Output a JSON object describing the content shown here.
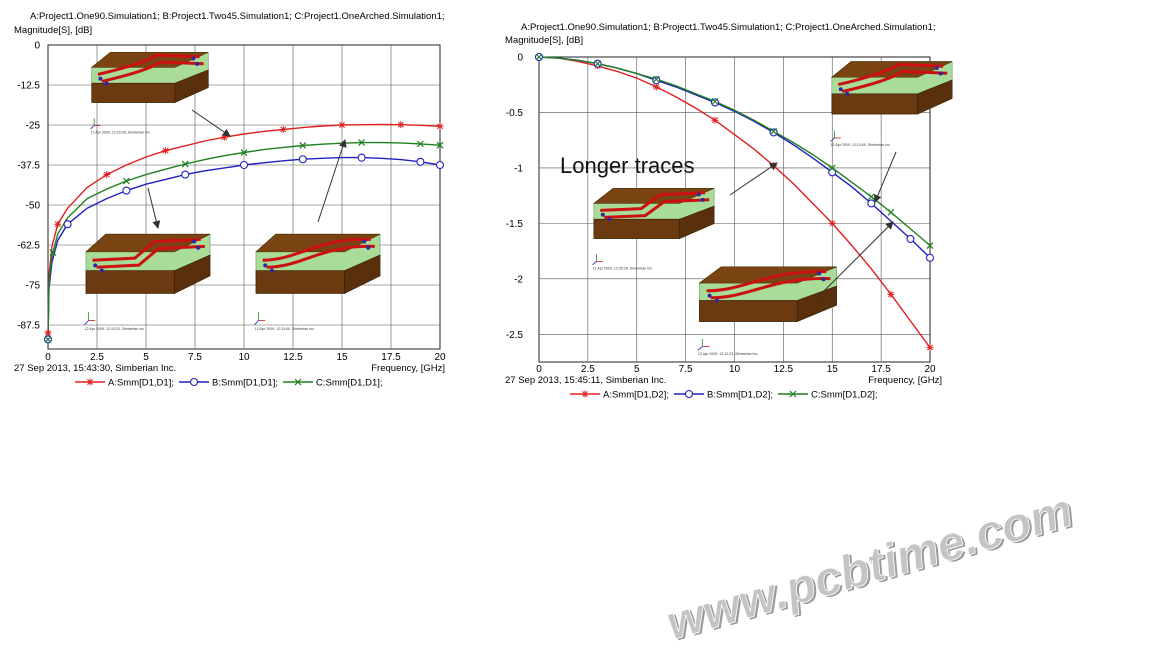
{
  "chart_data": [
    {
      "type": "line",
      "header_line1": "A:Project1.One90.Simulation1; B:Project1.Two45.Simulation1; C:Project1.OneArched.Simulation1;",
      "ylabel": "Magnitude[S], [dB]",
      "xlabel": "Frequency, [GHz]",
      "footer": "27 Sep 2013, 15:43:30, Simberian Inc.",
      "xlim": [
        0,
        20
      ],
      "ylim": [
        -95,
        0
      ],
      "xticks": [
        0,
        2.5,
        5,
        7.5,
        10,
        12.5,
        15,
        17.5,
        20
      ],
      "xtick_labels": [
        "0",
        "2.5",
        "5",
        "7.5",
        "10",
        "12.5",
        "15",
        "17.5",
        "20"
      ],
      "yticks": [
        0,
        -12.5,
        -25,
        -37.5,
        -50,
        -62.5,
        -75,
        -87.5
      ],
      "ytick_labels": [
        "0",
        "-12.5",
        "-25",
        "-37.5",
        "-50",
        "-62.5",
        "-75",
        "-87.5"
      ],
      "grid": true,
      "legend_position": "bottom",
      "series": [
        {
          "name": "A:Smm[D1,D1];",
          "color": "#e02020",
          "marker": "star",
          "x": [
            0,
            0.05,
            0.2,
            0.5,
            1,
            2,
            3,
            4,
            5,
            6,
            7,
            8,
            9,
            10,
            11,
            12,
            13,
            14,
            15,
            16,
            17,
            18,
            19,
            20
          ],
          "y": [
            -90,
            -72,
            -63,
            -56,
            -51,
            -44.5,
            -40.5,
            -37.5,
            -35,
            -33,
            -31.5,
            -30,
            -28.8,
            -27.8,
            -27,
            -26.4,
            -25.8,
            -25.3,
            -25,
            -24.9,
            -24.8,
            -24.9,
            -25.1,
            -25.4
          ]
        },
        {
          "name": "B:Smm[D1,D1];",
          "color": "#2020c0",
          "marker": "circle",
          "x": [
            0,
            0.05,
            0.2,
            0.5,
            1,
            2,
            3,
            4,
            5,
            6,
            7,
            8,
            9,
            10,
            11,
            12,
            13,
            14,
            15,
            16,
            17,
            18,
            19,
            20
          ],
          "y": [
            -92,
            -76,
            -68,
            -61,
            -56,
            -51,
            -48,
            -45.5,
            -43.5,
            -42,
            -40.5,
            -39.3,
            -38.4,
            -37.5,
            -36.8,
            -36.2,
            -35.7,
            -35.4,
            -35.2,
            -35.2,
            -35.4,
            -35.8,
            -36.5,
            -37.5
          ]
        },
        {
          "name": "C:Smm[D1,D1];",
          "color": "#208020",
          "marker": "x",
          "x": [
            0,
            0.05,
            0.2,
            0.5,
            1,
            2,
            3,
            4,
            5,
            6,
            7,
            8,
            9,
            10,
            11,
            12,
            13,
            14,
            15,
            16,
            17,
            18,
            19,
            20
          ],
          "y": [
            -92,
            -74,
            -66,
            -59,
            -54,
            -48,
            -45,
            -42.5,
            -40.5,
            -38.8,
            -37.2,
            -35.8,
            -34.6,
            -33.6,
            -32.7,
            -32,
            -31.4,
            -31,
            -30.7,
            -30.5,
            -30.5,
            -30.6,
            -30.9,
            -31.3
          ]
        }
      ],
      "marker_x": {
        "A:Smm[D1,D1];": [
          0,
          0.5,
          3,
          6,
          9,
          12,
          15,
          18,
          20
        ],
        "B:Smm[D1,D1];": [
          0,
          1,
          4,
          7,
          10,
          13,
          16,
          19,
          20
        ],
        "C:Smm[D1,D1];": [
          0,
          0.25,
          4,
          7,
          10,
          13,
          16,
          19,
          20
        ]
      },
      "annotations": [
        "12 Apr 2009, 12:20:26, Simberian Inc.",
        "12 Apr 2009, 12:12:23, Simberian Inc.",
        "12 Apr 2009, 12:13:00, Simberian Inc."
      ]
    },
    {
      "type": "line",
      "header_line1": "A:Project1.One90.Simulation1; B:Project1.Two45.Simulation1; C:Project1.OneArched.Simulation1;",
      "ylabel": "Magnitude[S], [dB]",
      "xlabel": "Frequency, [GHz]",
      "footer": "27 Sep 2013, 15:45:11, Simberian Inc.",
      "xlim": [
        0,
        20
      ],
      "ylim": [
        -2.75,
        0
      ],
      "xticks": [
        0,
        2.5,
        5,
        7.5,
        10,
        12.5,
        15,
        17.5,
        20
      ],
      "xtick_labels": [
        "0",
        "2.5",
        "5",
        "7.5",
        "10",
        "12.5",
        "15",
        "17.5",
        "20"
      ],
      "yticks": [
        0,
        -0.5,
        -1,
        -1.5,
        -2,
        -2.5
      ],
      "ytick_labels": [
        "0",
        "-0.5",
        "-1",
        "-1.5",
        "-2",
        "-2.5"
      ],
      "grid": true,
      "legend_position": "bottom",
      "annotation_text": "Longer traces",
      "series": [
        {
          "name": "A:Smm[D1,D2];",
          "color": "#e02020",
          "marker": "star",
          "x": [
            0,
            1,
            2,
            3,
            4,
            5,
            6,
            7,
            8,
            9,
            10,
            11,
            12,
            13,
            14,
            15,
            16,
            17,
            18,
            19,
            20
          ],
          "y": [
            0,
            -0.01,
            -0.04,
            -0.08,
            -0.13,
            -0.19,
            -0.27,
            -0.36,
            -0.46,
            -0.57,
            -0.7,
            -0.83,
            -0.98,
            -1.14,
            -1.32,
            -1.5,
            -1.7,
            -1.91,
            -2.14,
            -2.38,
            -2.62
          ]
        },
        {
          "name": "B:Smm[D1,D2];",
          "color": "#2020c0",
          "marker": "circle",
          "x": [
            0,
            1,
            2,
            3,
            4,
            5,
            6,
            7,
            8,
            9,
            10,
            11,
            12,
            13,
            14,
            15,
            16,
            17,
            18,
            19,
            20
          ],
          "y": [
            0,
            -0.01,
            -0.03,
            -0.06,
            -0.1,
            -0.15,
            -0.21,
            -0.27,
            -0.34,
            -0.41,
            -0.49,
            -0.58,
            -0.68,
            -0.79,
            -0.91,
            -1.04,
            -1.17,
            -1.32,
            -1.48,
            -1.64,
            -1.81
          ]
        },
        {
          "name": "C:Smm[D1,D2];",
          "color": "#208020",
          "marker": "x",
          "x": [
            0,
            1,
            2,
            3,
            4,
            5,
            6,
            7,
            8,
            9,
            10,
            11,
            12,
            13,
            14,
            15,
            16,
            17,
            18,
            19,
            20
          ],
          "y": [
            0,
            -0.01,
            -0.03,
            -0.06,
            -0.1,
            -0.15,
            -0.2,
            -0.26,
            -0.33,
            -0.4,
            -0.48,
            -0.57,
            -0.67,
            -0.77,
            -0.88,
            -1.0,
            -1.13,
            -1.26,
            -1.4,
            -1.55,
            -1.7
          ]
        }
      ],
      "marker_x": {
        "A:Smm[D1,D2];": [
          0,
          3,
          6,
          9,
          12,
          15,
          18,
          20
        ],
        "B:Smm[D1,D2];": [
          0,
          3,
          6,
          9,
          12,
          15,
          17,
          19,
          20
        ],
        "C:Smm[D1,D2];": [
          0,
          3,
          6,
          9,
          12,
          15,
          17,
          18,
          20
        ]
      },
      "annotations": [
        "12 Apr 2009, 12:13:00, Simberian Inc.",
        "12 Apr 2009, 12:20:26, Simberian Inc.",
        "12 Apr 2009, 12:12:23, Simberian Inc."
      ]
    }
  ],
  "watermark": "www.pcbtime.com",
  "colors": {
    "trace": "#cc1010",
    "board": "#6b3a10",
    "dielectric": "#a8dc98",
    "grid": "#555555"
  }
}
